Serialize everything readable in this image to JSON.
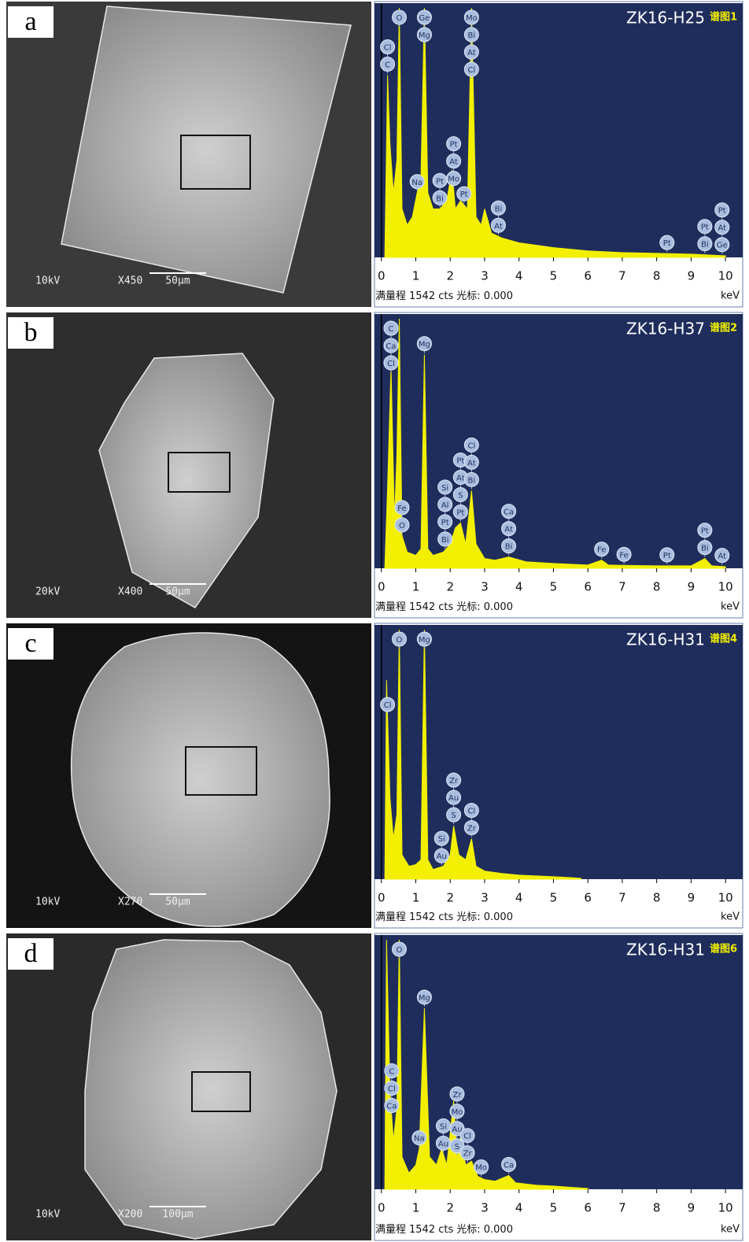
{
  "panels": [
    {
      "label": "a",
      "sem": {
        "kv": "10kV",
        "magnification": "X450",
        "scale": "50μm"
      },
      "spectrum": {
        "sample": "ZK16-H25",
        "name": "谱图1",
        "unit": "keV",
        "footer_prefix": "满量程",
        "full_scale": {
          "value": 1542,
          "label": "1542 cts"
        },
        "cursor": "光标: 0.000",
        "xlim": [
          -0.2,
          10.5
        ],
        "xticks": [
          0,
          1,
          2,
          3,
          4,
          5,
          6,
          7,
          8,
          9,
          10
        ],
        "x": [
          0.1,
          0.18,
          0.25,
          0.35,
          0.45,
          0.52,
          0.6,
          0.75,
          0.9,
          1.04,
          1.15,
          1.25,
          1.35,
          1.5,
          1.7,
          1.9,
          2.05,
          2.15,
          2.3,
          2.5,
          2.62,
          2.75,
          2.9,
          3.0,
          3.2,
          3.5,
          4,
          5,
          6,
          7,
          8,
          9,
          10
        ],
        "values": [
          0,
          1126,
          700,
          400,
          600,
          1542,
          300,
          200,
          250,
          400,
          500,
          1542,
          400,
          300,
          300,
          350,
          540,
          300,
          350,
          300,
          1542,
          250,
          200,
          300,
          150,
          120,
          90,
          60,
          40,
          30,
          25,
          20,
          10
        ],
        "markers": [
          {
            "x": 0.18,
            "labels": [
              "Cl",
              "C"
            ]
          },
          {
            "x": 0.52,
            "labels": [
              "O"
            ]
          },
          {
            "x": 1.04,
            "labels": [
              "Na"
            ]
          },
          {
            "x": 1.25,
            "labels": [
              "Ge",
              "Mg"
            ]
          },
          {
            "x": 1.7,
            "labels": [
              "Pt",
              "Bi"
            ]
          },
          {
            "x": 2.1,
            "labels": [
              "Pt",
              "At",
              "Mo"
            ]
          },
          {
            "x": 2.4,
            "labels": [
              "Pt"
            ]
          },
          {
            "x": 2.62,
            "labels": [
              "Mo",
              "Bi",
              "At",
              "Cl"
            ]
          },
          {
            "x": 3.4,
            "labels": [
              "Bi",
              "At"
            ]
          },
          {
            "x": 8.3,
            "labels": [
              "Pt"
            ]
          },
          {
            "x": 9.4,
            "labels": [
              "Pt",
              "Bi"
            ]
          },
          {
            "x": 9.9,
            "labels": [
              "Pt",
              "At",
              "Ge"
            ]
          }
        ]
      }
    },
    {
      "label": "b",
      "sem": {
        "kv": "20kV",
        "magnification": "X400",
        "scale": "50μm"
      },
      "spectrum": {
        "sample": "ZK16-H37",
        "name": "谱图2",
        "unit": "keV",
        "footer_prefix": "满量程",
        "full_scale": {
          "value": 1542,
          "label": "1542 cts"
        },
        "cursor": "光标: 0.000",
        "xlim": [
          -0.2,
          10.5
        ],
        "xticks": [
          0,
          1,
          2,
          3,
          4,
          5,
          6,
          7,
          8,
          9,
          10
        ],
        "x": [
          0.1,
          0.18,
          0.28,
          0.38,
          0.45,
          0.52,
          0.6,
          0.75,
          1.0,
          1.15,
          1.25,
          1.35,
          1.5,
          1.8,
          2.0,
          2.15,
          2.3,
          2.45,
          2.62,
          2.75,
          3.0,
          3.3,
          3.7,
          4.2,
          5,
          6,
          6.4,
          6.6,
          7,
          8,
          9,
          9.4,
          9.6,
          10
        ],
        "values": [
          0,
          500,
          1245,
          300,
          700,
          1542,
          200,
          100,
          80,
          120,
          1320,
          120,
          80,
          100,
          150,
          250,
          280,
          150,
          480,
          150,
          60,
          50,
          70,
          40,
          30,
          20,
          50,
          20,
          18,
          15,
          15,
          60,
          15,
          10
        ],
        "markers": [
          {
            "x": 0.28,
            "labels": [
              "C",
              "Ca",
              "Cl"
            ]
          },
          {
            "x": 0.6,
            "labels": [
              "Fe",
              "O"
            ]
          },
          {
            "x": 1.25,
            "labels": [
              "Mg"
            ]
          },
          {
            "x": 1.85,
            "labels": [
              "Si",
              "Al",
              "Pt",
              "Bi"
            ]
          },
          {
            "x": 2.3,
            "labels": [
              "Pt",
              "At",
              "S",
              "Pt"
            ]
          },
          {
            "x": 2.62,
            "labels": [
              "Cl",
              "At",
              "Bi"
            ]
          },
          {
            "x": 3.7,
            "labels": [
              "Ca",
              "At",
              "Bi"
            ]
          },
          {
            "x": 6.4,
            "labels": [
              "Fe"
            ]
          },
          {
            "x": 7.05,
            "labels": [
              "Fe"
            ]
          },
          {
            "x": 8.3,
            "labels": [
              "Pt"
            ]
          },
          {
            "x": 9.4,
            "labels": [
              "Pt",
              "Bi"
            ]
          },
          {
            "x": 9.9,
            "labels": [
              "At"
            ]
          }
        ]
      }
    },
    {
      "label": "c",
      "sem": {
        "kv": "10kV",
        "magnification": "X270",
        "scale": "50μm"
      },
      "spectrum": {
        "sample": "ZK16-H31",
        "name": "谱图4",
        "unit": "keV",
        "footer_prefix": "满量程",
        "full_scale": {
          "value": 1542,
          "label": "1542 cts"
        },
        "cursor": "光标: 0.000",
        "xlim": [
          -0.2,
          10.5
        ],
        "xticks": [
          0,
          1,
          2,
          3,
          4,
          5,
          6,
          7,
          8,
          9,
          10
        ],
        "x": [
          0.1,
          0.15,
          0.25,
          0.35,
          0.45,
          0.52,
          0.6,
          0.8,
          1.0,
          1.15,
          1.25,
          1.35,
          1.5,
          1.8,
          2.0,
          2.1,
          2.25,
          2.45,
          2.62,
          2.75,
          3.0,
          3.5,
          4,
          4.5,
          5,
          5.5,
          5.8
        ],
        "values": [
          0,
          1230,
          500,
          250,
          400,
          1542,
          150,
          80,
          90,
          120,
          1542,
          120,
          60,
          80,
          150,
          330,
          150,
          120,
          250,
          80,
          50,
          35,
          25,
          20,
          15,
          10,
          5
        ],
        "markers": [
          {
            "x": 0.18,
            "labels": [
              "Cl"
            ]
          },
          {
            "x": 0.52,
            "labels": [
              "O"
            ]
          },
          {
            "x": 1.25,
            "labels": [
              "Mg"
            ]
          },
          {
            "x": 1.75,
            "labels": [
              "Si",
              "Au"
            ]
          },
          {
            "x": 2.1,
            "labels": [
              "Zr",
              "Au",
              "S"
            ]
          },
          {
            "x": 2.62,
            "labels": [
              "Cl",
              "Zr"
            ]
          }
        ]
      }
    },
    {
      "label": "d",
      "sem": {
        "kv": "10kV",
        "magnification": "X200",
        "scale": "100μm"
      },
      "spectrum": {
        "sample": "ZK16-H31",
        "name": "谱图6",
        "unit": "keV",
        "footer_prefix": "满量程",
        "full_scale": {
          "value": 1542,
          "label": "1542 cts"
        },
        "cursor": "光标: 0.000",
        "xlim": [
          -0.2,
          10.5
        ],
        "xticks": [
          0,
          1,
          2,
          3,
          4,
          5,
          6,
          7,
          8,
          9,
          10
        ],
        "x": [
          0.1,
          0.15,
          0.25,
          0.35,
          0.45,
          0.52,
          0.6,
          0.8,
          1.0,
          1.1,
          1.25,
          1.4,
          1.6,
          1.75,
          1.9,
          2.1,
          2.2,
          2.3,
          2.45,
          2.62,
          2.8,
          3.0,
          3.3,
          3.7,
          3.9,
          4.5,
          5,
          5.5,
          6
        ],
        "values": [
          0,
          1542,
          600,
          300,
          500,
          1542,
          200,
          100,
          150,
          250,
          1119,
          200,
          150,
          250,
          150,
          547,
          200,
          325,
          150,
          174,
          80,
          60,
          50,
          85,
          40,
          25,
          20,
          12,
          5
        ],
        "markers": [
          {
            "x": 0.3,
            "labels": [
              "C",
              "Cl",
              "Ca"
            ]
          },
          {
            "x": 0.52,
            "labels": [
              "O"
            ]
          },
          {
            "x": 1.1,
            "labels": [
              "Na"
            ]
          },
          {
            "x": 1.25,
            "labels": [
              "Mg"
            ]
          },
          {
            "x": 1.8,
            "labels": [
              "Si",
              "Au"
            ]
          },
          {
            "x": 2.2,
            "labels": [
              "Zr",
              "Mo",
              "Au",
              "S"
            ]
          },
          {
            "x": 2.5,
            "labels": [
              "Cl",
              "Zr"
            ]
          },
          {
            "x": 2.9,
            "labels": [
              "Mo"
            ]
          },
          {
            "x": 3.7,
            "labels": [
              "Ca"
            ]
          }
        ]
      }
    }
  ]
}
